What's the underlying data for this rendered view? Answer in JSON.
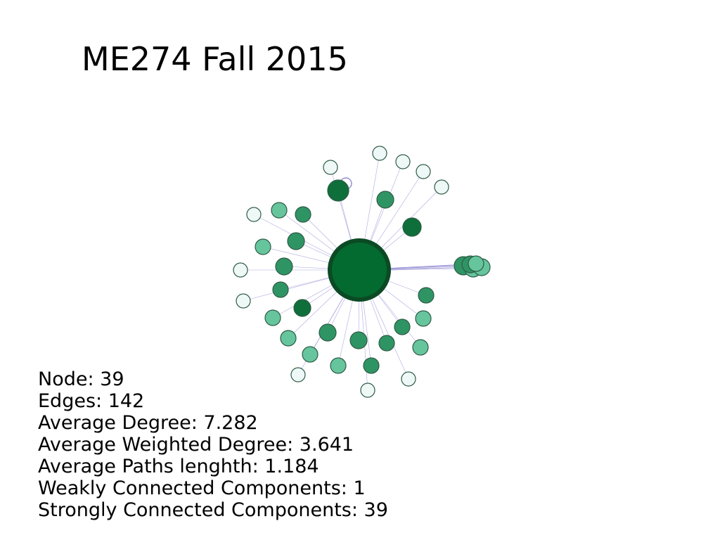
{
  "slide": {
    "title": "ME274 Fall 2015"
  },
  "network": {
    "colors": {
      "dark": "#0e6f3a",
      "medium": "#2f9464",
      "light": "#66c59d",
      "pale": "#eef8f7",
      "hub": "#036b2f",
      "hub_ring": "#0b4a24",
      "edge": "#6b63c4"
    },
    "hub": {
      "name": "hub-node",
      "tone": "hub"
    },
    "nodes": [
      {
        "tone": "pale"
      },
      {
        "tone": "pale"
      },
      {
        "tone": "pale"
      },
      {
        "tone": "pale"
      },
      {
        "tone": "pale"
      },
      {
        "tone": "dark"
      },
      {
        "tone": "medium"
      },
      {
        "tone": "dark"
      },
      {
        "tone": "pale"
      },
      {
        "tone": "light"
      },
      {
        "tone": "medium"
      },
      {
        "tone": "medium"
      },
      {
        "tone": "light"
      },
      {
        "tone": "pale"
      },
      {
        "tone": "medium"
      },
      {
        "tone": "medium"
      },
      {
        "tone": "pale"
      },
      {
        "tone": "dark"
      },
      {
        "tone": "light"
      },
      {
        "tone": "medium"
      },
      {
        "tone": "light"
      },
      {
        "tone": "light"
      },
      {
        "tone": "pale"
      },
      {
        "tone": "medium"
      },
      {
        "tone": "light"
      },
      {
        "tone": "medium"
      },
      {
        "tone": "light"
      },
      {
        "tone": "pale"
      },
      {
        "tone": "medium"
      },
      {
        "tone": "medium"
      },
      {
        "tone": "light"
      },
      {
        "tone": "pale"
      },
      {
        "tone": "medium"
      },
      {
        "tone": "medium"
      },
      {
        "tone": "light"
      },
      {
        "tone": "light"
      },
      {
        "tone": "medium"
      },
      {
        "tone": "light"
      }
    ]
  },
  "stats": {
    "nodes": "Node: 39",
    "edges": "Edges: 142",
    "avg_degree": "Average Degree: 7.282",
    "avg_weighted_degree": "Average Weighted Degree: 3.641",
    "avg_path_length": "Average Paths lenghth: 1.184",
    "weakly_connected": "Weakly Connected Components: 1",
    "strongly_connected": "Strongly Connected Components: 39"
  }
}
